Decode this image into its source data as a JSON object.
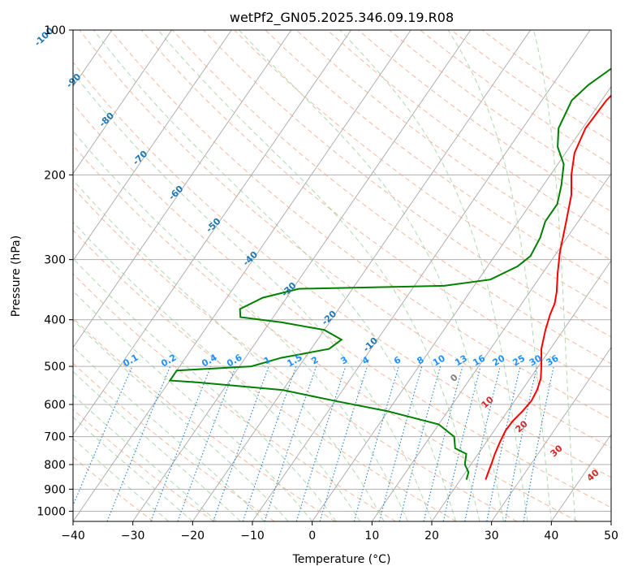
{
  "chart_data": {
    "type": "line",
    "title": "wetPf2_GN05.2025.346.09.19.R08",
    "xlabel": "Temperature (°C)",
    "ylabel": "Pressure (hPa)",
    "xlim": [
      -40,
      50
    ],
    "ylim": [
      1050,
      100
    ],
    "y_scale": "log",
    "x_ticks": [
      -40,
      -30,
      -20,
      -10,
      0,
      10,
      20,
      30,
      40,
      50
    ],
    "y_ticks": [
      100,
      200,
      300,
      400,
      500,
      600,
      700,
      800,
      900,
      1000
    ],
    "grid": true,
    "series": [
      {
        "color": "#ff0000",
        "points": [
          [
            24.2,
            860
          ],
          [
            23.8,
            830
          ],
          [
            23.4,
            800
          ],
          [
            22.8,
            760
          ],
          [
            22.3,
            720
          ],
          [
            21.9,
            680
          ],
          [
            22.0,
            650
          ],
          [
            22.5,
            620
          ],
          [
            22.8,
            590
          ],
          [
            22.5,
            560
          ],
          [
            21.8,
            530
          ],
          [
            20.5,
            500
          ],
          [
            18.5,
            460
          ],
          [
            17.0,
            420
          ],
          [
            16.0,
            390
          ],
          [
            15.5,
            370
          ],
          [
            14.5,
            350
          ],
          [
            12.5,
            320
          ],
          [
            10.5,
            290
          ],
          [
            8.0,
            250
          ],
          [
            5.8,
            220
          ],
          [
            3.5,
            200
          ],
          [
            1.5,
            180
          ],
          [
            0.5,
            160
          ],
          [
            0.8,
            140
          ],
          [
            2.0,
            125
          ],
          [
            2.0,
            115
          ],
          [
            5.0,
            108
          ],
          [
            7.0,
            100
          ]
        ]
      },
      {
        "color": "#008000",
        "points": [
          [
            21.0,
            860
          ],
          [
            20.5,
            830
          ],
          [
            19.0,
            800
          ],
          [
            18.0,
            760
          ],
          [
            15.5,
            740
          ],
          [
            14.0,
            700
          ],
          [
            10.0,
            660
          ],
          [
            0.0,
            620
          ],
          [
            -10.0,
            590
          ],
          [
            -20.0,
            560
          ],
          [
            -35.0,
            540
          ],
          [
            -40.0,
            535
          ],
          [
            -40.0,
            510
          ],
          [
            -28.0,
            500
          ],
          [
            -24.0,
            480
          ],
          [
            -17.0,
            460
          ],
          [
            -16.0,
            440
          ],
          [
            -20.0,
            420
          ],
          [
            -28.0,
            405
          ],
          [
            -35.5,
            395
          ],
          [
            -36.5,
            380
          ],
          [
            -34.0,
            360
          ],
          [
            -29.0,
            345
          ],
          [
            -5.0,
            340
          ],
          [
            2.0,
            330
          ],
          [
            5.0,
            310
          ],
          [
            6.0,
            295
          ],
          [
            5.5,
            270
          ],
          [
            4.5,
            250
          ],
          [
            4.5,
            230
          ],
          [
            3.0,
            210
          ],
          [
            1.0,
            190
          ],
          [
            -2.0,
            175
          ],
          [
            -4.0,
            160
          ],
          [
            -5.0,
            140
          ],
          [
            -4.0,
            130
          ],
          [
            -2.0,
            120
          ],
          [
            -1.0,
            110
          ],
          [
            0.5,
            100
          ]
        ]
      }
    ],
    "isotherm_labels": [
      "-100",
      "-90",
      "-80",
      "-70",
      "-60",
      "-50",
      "-40",
      "-30",
      "-20",
      "-10",
      "0"
    ],
    "mixing_ratio_labels": [
      "0.1",
      "0.2",
      "0.4",
      "0.6",
      "1",
      "1.5",
      "2",
      "3",
      "4",
      "6",
      "8",
      "10",
      "13",
      "16",
      "20",
      "25",
      "30",
      "36"
    ],
    "dry_adiabat_labels": [
      "10",
      "20",
      "30",
      "40"
    ]
  }
}
